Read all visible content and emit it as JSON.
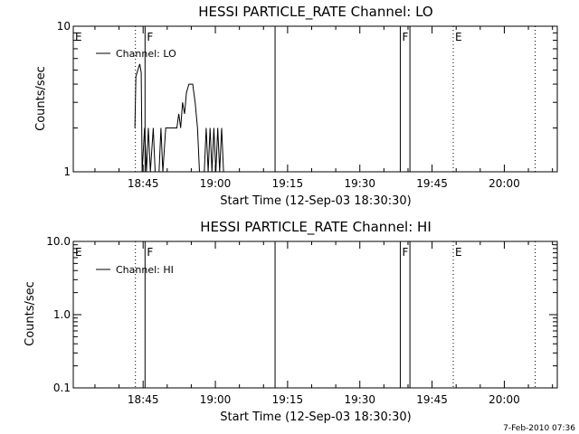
{
  "chart_data": [
    {
      "type": "line",
      "title": "HESSI PARTICLE_RATE Channel: LO",
      "xlabel": "Start Time (12-Sep-03 18:30:30)",
      "ylabel": "Counts/sec",
      "yscale": "log",
      "xlim_minutes_after_18_30_30": [
        0,
        100.5
      ],
      "ylim": [
        1,
        10
      ],
      "y_ticks": [
        {
          "value": 1,
          "label": "1"
        },
        {
          "value": 10,
          "label": "10"
        }
      ],
      "x_ticks": [
        {
          "minute": 14.5,
          "label": "18:45"
        },
        {
          "minute": 29.5,
          "label": "19:00"
        },
        {
          "minute": 44.5,
          "label": "19:15"
        },
        {
          "minute": 59.5,
          "label": "19:30"
        },
        {
          "minute": 74.5,
          "label": "19:45"
        },
        {
          "minute": 89.5,
          "label": "20:00"
        }
      ],
      "legend": {
        "position": "top-left",
        "entries": [
          "Channel: LO"
        ]
      },
      "series": [
        {
          "name": "Channel: LO",
          "points": [
            [
              12.8,
              2.0
            ],
            [
              13.0,
              4.5
            ],
            [
              13.4,
              5.0
            ],
            [
              13.8,
              5.5
            ],
            [
              14.1,
              4.8
            ],
            [
              14.3,
              1.0
            ],
            [
              14.8,
              2.0
            ],
            [
              15.2,
              1.0
            ],
            [
              15.6,
              2.0
            ],
            [
              16.0,
              1.0
            ],
            [
              16.6,
              2.0
            ],
            [
              17.0,
              1.0
            ],
            [
              17.8,
              1.0
            ],
            [
              18.2,
              2.0
            ],
            [
              18.6,
              1.0
            ],
            [
              19.2,
              2.0
            ],
            [
              20.5,
              2.0
            ],
            [
              21.5,
              2.0
            ],
            [
              21.9,
              2.5
            ],
            [
              22.3,
              2.0
            ],
            [
              22.7,
              3.0
            ],
            [
              23.1,
              2.5
            ],
            [
              23.5,
              3.5
            ],
            [
              24.0,
              4.0
            ],
            [
              24.8,
              4.0
            ],
            [
              25.3,
              3.0
            ],
            [
              25.8,
              2.0
            ],
            [
              26.2,
              1.0
            ],
            [
              27.2,
              1.0
            ],
            [
              27.6,
              2.0
            ],
            [
              28.0,
              1.0
            ],
            [
              28.4,
              2.0
            ],
            [
              28.8,
              1.0
            ],
            [
              29.2,
              2.0
            ],
            [
              29.6,
              1.0
            ],
            [
              30.0,
              2.0
            ],
            [
              30.4,
              1.0
            ],
            [
              30.8,
              2.0
            ],
            [
              31.2,
              1.0
            ]
          ]
        }
      ],
      "markers": [
        {
          "label": "E",
          "minute": 0,
          "style": "none"
        },
        {
          "label": "",
          "minute": 12.9,
          "style": "dotted"
        },
        {
          "label": "F",
          "minute": 14.9,
          "style": "solid"
        },
        {
          "label": "",
          "minute": 41.9,
          "style": "solid"
        },
        {
          "label": "F",
          "minute": 67.9,
          "style": "solid"
        },
        {
          "label": "",
          "minute": 69.9,
          "style": "solid"
        },
        {
          "label": "E",
          "minute": 78.9,
          "style": "dotted"
        },
        {
          "label": "",
          "minute": 95.9,
          "style": "dotted"
        }
      ]
    },
    {
      "type": "line",
      "title": "HESSI PARTICLE_RATE Channel: HI",
      "xlabel": "Start Time (12-Sep-03 18:30:30)",
      "ylabel": "Counts/sec",
      "yscale": "log",
      "xlim_minutes_after_18_30_30": [
        0,
        100.5
      ],
      "ylim": [
        0.1,
        10
      ],
      "y_ticks": [
        {
          "value": 0.1,
          "label": "0.1"
        },
        {
          "value": 1,
          "label": "1.0"
        },
        {
          "value": 10,
          "label": "10.0"
        }
      ],
      "x_ticks": [
        {
          "minute": 14.5,
          "label": "18:45"
        },
        {
          "minute": 29.5,
          "label": "19:00"
        },
        {
          "minute": 44.5,
          "label": "19:15"
        },
        {
          "minute": 59.5,
          "label": "19:30"
        },
        {
          "minute": 74.5,
          "label": "19:45"
        },
        {
          "minute": 89.5,
          "label": "20:00"
        }
      ],
      "legend": {
        "position": "top-left",
        "entries": [
          "Channel: HI"
        ]
      },
      "series": [
        {
          "name": "Channel: HI",
          "points": []
        }
      ],
      "markers": [
        {
          "label": "E",
          "minute": 0,
          "style": "none"
        },
        {
          "label": "",
          "minute": 12.9,
          "style": "dotted"
        },
        {
          "label": "F",
          "minute": 14.9,
          "style": "solid"
        },
        {
          "label": "",
          "minute": 41.9,
          "style": "solid"
        },
        {
          "label": "F",
          "minute": 67.9,
          "style": "solid"
        },
        {
          "label": "",
          "minute": 69.9,
          "style": "solid"
        },
        {
          "label": "E",
          "minute": 78.9,
          "style": "dotted"
        },
        {
          "label": "",
          "minute": 95.9,
          "style": "dotted"
        }
      ]
    }
  ],
  "footer": {
    "date_stamp": "7-Feb-2010 07:36"
  }
}
